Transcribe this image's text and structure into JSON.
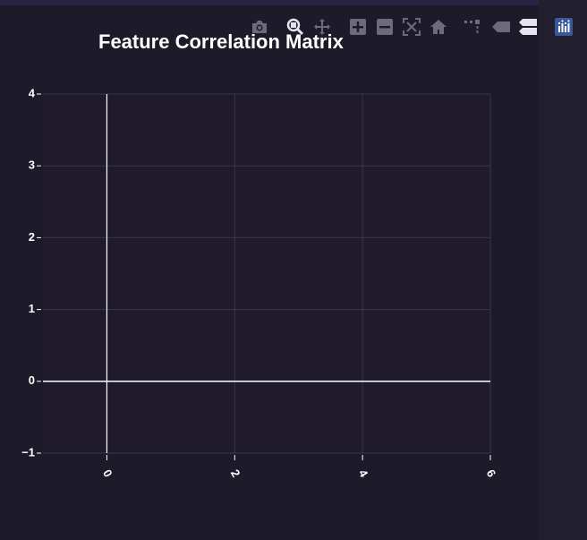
{
  "chart_data": {
    "type": "heatmap",
    "title": "Feature Correlation Matrix",
    "xlabel": "",
    "ylabel": "",
    "xlim": [
      -1,
      6
    ],
    "ylim": [
      -1,
      4
    ],
    "x_ticks": [
      0,
      2,
      4,
      6
    ],
    "y_ticks": [
      -1,
      0,
      1,
      2,
      3,
      4
    ],
    "x_tick_labels": [
      "0",
      "2",
      "4",
      "6"
    ],
    "y_tick_labels": [
      "−1",
      "0",
      "1",
      "2",
      "3",
      "4"
    ],
    "grid": true,
    "zero_lines": true,
    "values": []
  },
  "modebar": {
    "buttons": [
      {
        "name": "camera-icon",
        "label": "Download plot as a png"
      },
      {
        "name": "zoom-icon",
        "label": "Zoom"
      },
      {
        "name": "pan-icon",
        "label": "Pan"
      },
      {
        "name": "zoom-in-icon",
        "label": "Zoom in"
      },
      {
        "name": "zoom-out-icon",
        "label": "Zoom out"
      },
      {
        "name": "autoscale-icon",
        "label": "Autoscale"
      },
      {
        "name": "home-icon",
        "label": "Reset axes"
      },
      {
        "name": "spike-lines-icon",
        "label": "Toggle Spike Lines"
      },
      {
        "name": "hover-closest-icon",
        "label": "Show closest data on hover"
      },
      {
        "name": "hover-compare-icon",
        "label": "Compare data on hover"
      },
      {
        "name": "plotly-logo-icon",
        "label": "Produced with Plotly"
      }
    ]
  },
  "colors": {
    "background": "#1d1a29",
    "plot_background": "#1f1b2c",
    "grid": "#3a3745",
    "zero_line": "#ffffff",
    "text": "#ffffff",
    "icon": "#6e6a7c",
    "plotly_logo_bg": "#3b5998"
  }
}
